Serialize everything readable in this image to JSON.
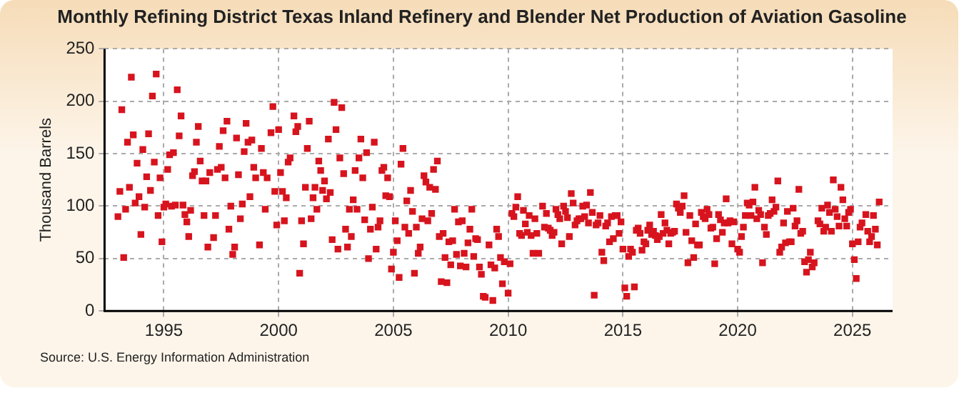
{
  "chart_data": {
    "type": "scatter",
    "title": "Monthly Refining District Texas Inland Refinery and Blender Net Production of Aviation Gasoline",
    "ylabel": "Thousand Barrels",
    "annotations": [
      "Source: U.S. Energy Information Administration"
    ],
    "x": [
      "1993-01",
      "1993-02",
      "1993-03",
      "1993-04",
      "1993-05",
      "1993-06",
      "1993-07",
      "1993-08",
      "1993-09",
      "1993-10",
      "1993-11",
      "1993-12",
      "1994-01",
      "1994-02",
      "1994-03",
      "1994-04",
      "1994-05",
      "1994-06",
      "1994-07",
      "1994-08",
      "1994-09",
      "1994-10",
      "1994-11",
      "1994-12",
      "1995-01",
      "1995-02",
      "1995-03",
      "1995-04",
      "1995-05",
      "1995-06",
      "1995-07",
      "1995-08",
      "1995-09",
      "1995-10",
      "1995-11",
      "1995-12",
      "1996-01",
      "1996-02",
      "1996-03",
      "1996-04",
      "1996-05",
      "1996-06",
      "1996-07",
      "1996-08",
      "1996-09",
      "1996-10",
      "1996-11",
      "1996-12",
      "1997-01",
      "1997-03",
      "1997-04",
      "1997-05",
      "1997-06",
      "1997-07",
      "1997-08",
      "1997-09",
      "1997-10",
      "1997-11",
      "1997-12",
      "1998-01",
      "1998-02",
      "1998-03",
      "1998-04",
      "1998-05",
      "1998-06",
      "1998-07",
      "1998-08",
      "1998-09",
      "1998-10",
      "1998-11",
      "1998-12",
      "1999-01",
      "1999-03",
      "1999-04",
      "1999-05",
      "1999-06",
      "1999-07",
      "1999-09",
      "1999-10",
      "1999-11",
      "1999-12",
      "2000-01",
      "2000-02",
      "2000-03",
      "2000-04",
      "2000-05",
      "2000-06",
      "2000-07",
      "2000-09",
      "2000-10",
      "2000-11",
      "2000-12",
      "2001-01",
      "2001-02",
      "2001-03",
      "2001-04",
      "2001-05",
      "2001-06",
      "2001-07",
      "2001-08",
      "2001-09",
      "2001-10",
      "2001-11",
      "2001-12",
      "2002-01",
      "2002-02",
      "2002-03",
      "2002-04",
      "2002-05",
      "2002-06",
      "2002-07",
      "2002-08",
      "2002-09",
      "2002-10",
      "2002-11",
      "2002-12",
      "2003-01",
      "2003-02",
      "2003-03",
      "2003-04",
      "2003-05",
      "2003-06",
      "2003-07",
      "2003-08",
      "2003-09",
      "2003-10",
      "2003-11",
      "2003-12",
      "2004-01",
      "2004-02",
      "2004-03",
      "2004-04",
      "2004-05",
      "2004-06",
      "2004-07",
      "2004-08",
      "2004-09",
      "2004-10",
      "2004-11",
      "2004-12",
      "2005-01",
      "2005-02",
      "2005-03",
      "2005-04",
      "2005-05",
      "2005-06",
      "2005-07",
      "2005-08",
      "2005-09",
      "2005-10",
      "2005-11",
      "2005-12",
      "2006-01",
      "2006-02",
      "2006-03",
      "2006-04",
      "2006-05",
      "2006-06",
      "2006-07",
      "2006-08",
      "2006-09",
      "2006-10",
      "2006-11",
      "2006-12",
      "2007-01",
      "2007-02",
      "2007-03",
      "2007-04",
      "2007-05",
      "2007-06",
      "2007-07",
      "2007-08",
      "2007-09",
      "2007-10",
      "2007-11",
      "2007-12",
      "2008-01",
      "2008-02",
      "2008-03",
      "2008-04",
      "2008-05",
      "2008-06",
      "2008-07",
      "2008-08",
      "2008-09",
      "2008-10",
      "2008-11",
      "2008-12",
      "2009-01",
      "2009-03",
      "2009-04",
      "2009-05",
      "2009-06",
      "2009-07",
      "2009-08",
      "2009-09",
      "2009-10",
      "2009-11",
      "2010-01",
      "2010-02",
      "2010-03",
      "2010-04",
      "2010-05",
      "2010-06",
      "2010-07",
      "2010-08",
      "2010-09",
      "2010-10",
      "2010-11",
      "2010-12",
      "2011-01",
      "2011-02",
      "2011-03",
      "2011-04",
      "2011-05",
      "2011-07",
      "2011-08",
      "2011-09",
      "2011-10",
      "2011-11",
      "2011-12",
      "2012-01",
      "2012-02",
      "2012-03",
      "2012-04",
      "2012-05",
      "2012-06",
      "2012-07",
      "2012-08",
      "2012-09",
      "2012-10",
      "2012-11",
      "2012-12",
      "2013-01",
      "2013-02",
      "2013-03",
      "2013-04",
      "2013-05",
      "2013-06",
      "2013-07",
      "2013-08",
      "2013-09",
      "2013-10",
      "2013-11",
      "2013-12",
      "2014-01",
      "2014-02",
      "2014-03",
      "2014-04",
      "2014-05",
      "2014-06",
      "2014-07",
      "2014-08",
      "2014-09",
      "2014-10",
      "2014-11",
      "2014-12",
      "2015-01",
      "2015-02",
      "2015-03",
      "2015-04",
      "2015-05",
      "2015-06",
      "2015-07",
      "2015-08",
      "2015-09",
      "2015-10",
      "2015-11",
      "2015-12",
      "2016-01",
      "2016-02",
      "2016-03",
      "2016-04",
      "2016-05",
      "2016-06",
      "2016-07",
      "2016-08",
      "2016-09",
      "2016-10",
      "2016-11",
      "2016-12",
      "2017-01",
      "2017-02",
      "2017-03",
      "2017-04",
      "2017-05",
      "2017-06",
      "2017-07",
      "2017-08",
      "2017-09",
      "2017-10",
      "2017-11",
      "2017-12",
      "2018-01",
      "2018-02",
      "2018-03",
      "2018-04",
      "2018-05",
      "2018-06",
      "2018-07",
      "2018-08",
      "2018-09",
      "2018-10",
      "2018-11",
      "2018-12",
      "2019-01",
      "2019-02",
      "2019-03",
      "2019-04",
      "2019-05",
      "2019-06",
      "2019-07",
      "2019-08",
      "2019-09",
      "2019-10",
      "2019-11",
      "2020-01",
      "2020-02",
      "2020-03",
      "2020-04",
      "2020-05",
      "2020-06",
      "2020-07",
      "2020-08",
      "2020-09",
      "2020-10",
      "2020-11",
      "2020-12",
      "2021-01",
      "2021-02",
      "2021-03",
      "2021-04",
      "2021-05",
      "2021-06",
      "2021-07",
      "2021-08",
      "2021-09",
      "2021-10",
      "2021-11",
      "2021-12",
      "2022-01",
      "2022-02",
      "2022-03",
      "2022-04",
      "2022-05",
      "2022-06",
      "2022-07",
      "2022-08",
      "2022-09",
      "2022-10",
      "2022-11",
      "2022-12",
      "2023-01",
      "2023-02",
      "2023-03",
      "2023-04",
      "2023-05",
      "2023-07",
      "2023-08",
      "2023-09",
      "2023-10",
      "2023-11",
      "2023-12",
      "2024-01",
      "2024-02",
      "2024-03",
      "2024-04",
      "2024-05",
      "2024-06",
      "2024-07",
      "2024-08",
      "2024-09",
      "2024-10",
      "2024-11",
      "2024-12",
      "2025-01",
      "2025-02",
      "2025-03",
      "2025-04",
      "2025-05",
      "2025-06",
      "2025-08",
      "2025-09",
      "2025-10",
      "2025-11",
      "2025-12",
      "2026-01",
      "2026-02",
      "2026-03"
    ],
    "series": [
      {
        "color": "#d7141e",
        "values": [
          90,
          114,
          192,
          51,
          97,
          161,
          118,
          223,
          168,
          103,
          141,
          109,
          73,
          154,
          99,
          128,
          169,
          115,
          205,
          142,
          226,
          91,
          127,
          66,
          99,
          102,
          135,
          149,
          100,
          151,
          101,
          211,
          167,
          186,
          101,
          92,
          85,
          71,
          96,
          129,
          133,
          161,
          176,
          143,
          124,
          91,
          124,
          61,
          132,
          70,
          91,
          135,
          157,
          137,
          172,
          127,
          181,
          78,
          100,
          54,
          61,
          165,
          130,
          88,
          102,
          152,
          179,
          161,
          109,
          163,
          137,
          127,
          63,
          155,
          132,
          97,
          127,
          170,
          195,
          114,
          82,
          173,
          132,
          114,
          86,
          108,
          142,
          146,
          186,
          171,
          176,
          36,
          86,
          64,
          118,
          155,
          181,
          88,
          108,
          118,
          97,
          143,
          134,
          115,
          124,
          107,
          164,
          113,
          68,
          199,
          173,
          59,
          146,
          194,
          131,
          78,
          61,
          97,
          71,
          106,
          134,
          97,
          146,
          164,
          127,
          87,
          151,
          50,
          78,
          99,
          161,
          59,
          80,
          86,
          134,
          137,
          110,
          127,
          109,
          40,
          56,
          86,
          67,
          32,
          140,
          155,
          80,
          105,
          74,
          115,
          95,
          36,
          80,
          55,
          61,
          88,
          129,
          123,
          86,
          118,
          93,
          135,
          116,
          143,
          71,
          28,
          74,
          51,
          27,
          66,
          44,
          67,
          97,
          54,
          85,
          43,
          86,
          55,
          42,
          65,
          78,
          97,
          52,
          69,
          68,
          42,
          35,
          14,
          13,
          63,
          44,
          10,
          41,
          78,
          71,
          51,
          26,
          47,
          17,
          45,
          93,
          90,
          99,
          109,
          74,
          72,
          96,
          83,
          75,
          91,
          72,
          55,
          88,
          74,
          55,
          100,
          80,
          93,
          79,
          77,
          72,
          75,
          97,
          92,
          88,
          64,
          100,
          95,
          89,
          71,
          112,
          103,
          82,
          86,
          88,
          88,
          100,
          90,
          101,
          84,
          113,
          94,
          15,
          82,
          84,
          91,
          56,
          48,
          81,
          84,
          66,
          90,
          69,
          91,
          91,
          74,
          85,
          59,
          22,
          14,
          52,
          59,
          56,
          23,
          77,
          79,
          74,
          58,
          66,
          64,
          77,
          82,
          73,
          76,
          72,
          68,
          71,
          92,
          74,
          84,
          77,
          64,
          74,
          75,
          76,
          102,
          98,
          94,
          100,
          110,
          75,
          46,
          91,
          67,
          51,
          83,
          63,
          63,
          94,
          90,
          88,
          97,
          92,
          79,
          80,
          45,
          69,
          92,
          87,
          75,
          84,
          107,
          84,
          86,
          64,
          85,
          59,
          56,
          71,
          80,
          91,
          103,
          101,
          91,
          104,
          118,
          88,
          96,
          92,
          46,
          80,
          73,
          91,
          93,
          106,
          95,
          99,
          124,
          56,
          61,
          84,
          65,
          95,
          66,
          66,
          98,
          81,
          86,
          116,
          74,
          76,
          47,
          37,
          49,
          56,
          42,
          46,
          86,
          83,
          98,
          76,
          80,
          101,
          94,
          76,
          125,
          97,
          90,
          81,
          118,
          106,
          88,
          81,
          94,
          97,
          64,
          49,
          31,
          66,
          80,
          84,
          92,
          76,
          66,
          71,
          91,
          78,
          63,
          104
        ]
      }
    ],
    "xlim": [
      "1992-06",
      "2026-10"
    ],
    "xticks": [
      "1995",
      "2000",
      "2005",
      "2010",
      "2015",
      "2020",
      "2025"
    ],
    "ylim": [
      0,
      250
    ],
    "yticks": [
      0,
      50,
      100,
      150,
      200,
      250
    ],
    "grid": true,
    "legend": false,
    "marker": "square"
  }
}
